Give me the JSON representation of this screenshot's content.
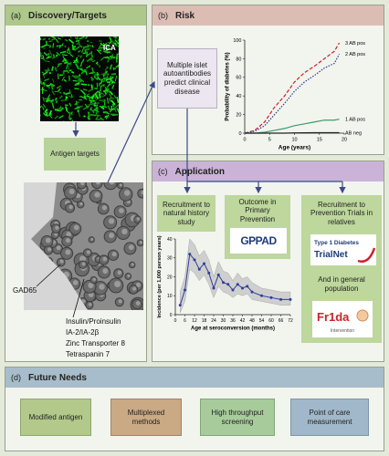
{
  "panels": {
    "a": {
      "label": "(a)",
      "title": "Discovery/Targets",
      "image_label": "ICA",
      "box": "Antigen targets",
      "antigens": [
        "GAD65",
        "Insulin/Proinsulin",
        "IA-2/IA-2β",
        "Zinc Transporter 8",
        "Tetraspanin 7"
      ]
    },
    "b": {
      "label": "(b)",
      "title": "Risk",
      "box": "Multiple islet autoantibodies predict clinical disease",
      "chart": {
        "type": "line",
        "xlabel": "Age (years)",
        "ylabel": "Probability of diabetes (%)",
        "x": [
          0,
          2,
          4,
          6,
          8,
          10,
          12,
          14,
          16,
          18,
          19
        ],
        "series": [
          {
            "name": "3 AB pos",
            "color": "#d0202a",
            "style": "dashed",
            "values": [
              0,
              3,
              12,
              28,
              40,
              55,
              65,
              72,
              80,
              88,
              97
            ]
          },
          {
            "name": "2 AB pos",
            "color": "#2b3a8f",
            "style": "dotted",
            "values": [
              0,
              2,
              8,
              20,
              32,
              45,
              55,
              62,
              70,
              75,
              85
            ]
          },
          {
            "name": "1 AB pos",
            "color": "#3e9a6a",
            "style": "solid",
            "values": [
              0,
              0,
              1,
              3,
              5,
              8,
              10,
              12,
              14,
              14,
              15
            ]
          },
          {
            "name": "AB neg",
            "color": "#222222",
            "style": "solid",
            "values": [
              0,
              0,
              0,
              0,
              0,
              0.3,
              0.4,
              0.5,
              0.5,
              0.5,
              0.5
            ]
          }
        ],
        "xlim": [
          0,
          20
        ],
        "xticks": [
          0,
          5,
          10,
          15,
          20
        ],
        "ylim": [
          0,
          100
        ],
        "yticks": [
          0,
          20,
          40,
          60,
          80,
          100
        ]
      }
    },
    "c": {
      "label": "(c)",
      "title": "Application",
      "boxes": [
        "Recruitment to natural history study",
        "Outcome in Primary Prevention",
        "Recruitment to Prevention Trials in relatives",
        "And in general population"
      ],
      "logos": {
        "gppad": "GPPAD",
        "trialnet_top": "Type 1 Diabetes",
        "trialnet": "TrialNet",
        "frida": "Fr1da",
        "frida_sub": "Intervention"
      },
      "chart": {
        "type": "line",
        "xlabel": "Age at seroconversion (months)",
        "ylabel": "Incidence (per 1,000 person years)",
        "color": "#2e3f99",
        "band_color": "#cfcfcf",
        "x": [
          3,
          6,
          9,
          12,
          15,
          18,
          21,
          24,
          27,
          30,
          33,
          36,
          39,
          42,
          45,
          48,
          54,
          60,
          66,
          72
        ],
        "values": [
          5,
          13,
          32,
          29,
          24,
          27,
          22,
          14,
          21,
          17,
          16,
          13,
          16,
          14,
          15,
          12,
          10,
          9,
          8,
          8
        ],
        "ci_lower": [
          1,
          7,
          24,
          22,
          18,
          21,
          16,
          9,
          15,
          12,
          11,
          9,
          11,
          10,
          11,
          8,
          7,
          6,
          5,
          5
        ],
        "ci_upper": [
          12,
          20,
          40,
          37,
          31,
          34,
          29,
          20,
          28,
          23,
          22,
          18,
          22,
          19,
          20,
          17,
          14,
          13,
          12,
          12
        ],
        "xlim": [
          0,
          72
        ],
        "xticks": [
          0,
          6,
          12,
          18,
          24,
          30,
          36,
          42,
          48,
          54,
          60,
          66,
          72
        ],
        "ylim": [
          0,
          40
        ],
        "yticks": [
          0,
          10,
          20,
          30,
          40
        ]
      }
    },
    "d": {
      "label": "(d)",
      "title": "Future Needs",
      "boxes": [
        "Modified antigen",
        "Multiplexed methods",
        "High throughput screening",
        "Point of care measurement"
      ]
    }
  }
}
